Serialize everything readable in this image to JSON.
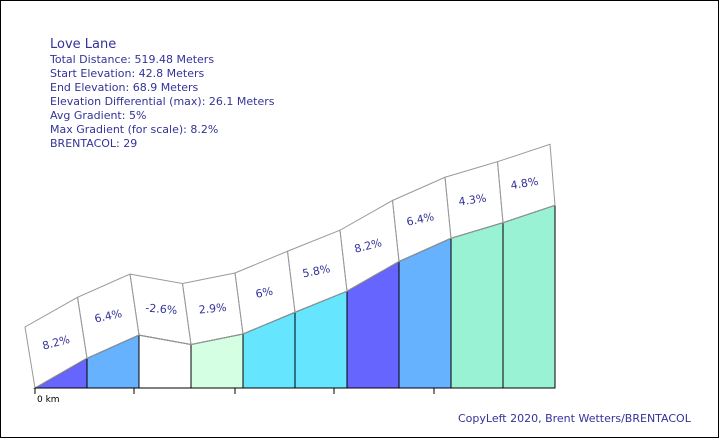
{
  "header": {
    "title": "Love Lane",
    "lines": [
      "Total Distance: 519.48 Meters",
      "Start Elevation: 42.8 Meters",
      "End Elevation: 68.9 Meters",
      "Elevation Differential (max): 26.1 Meters",
      "Avg Gradient: 5%",
      "Max Gradient (for scale): 8.2%",
      "BRENTACOL: 29"
    ]
  },
  "credit": "CopyLeft 2020, Brent Wetters/BRENTACOL",
  "chart_data": {
    "type": "area",
    "title": "Love Lane",
    "x_unit": "km",
    "x_tick_labels": [
      "0 km"
    ],
    "total_distance_m": 519.48,
    "start_elevation_m": 42.8,
    "end_elevation_m": 68.9,
    "segments": [
      {
        "grade": "8.2%",
        "value": 8.2,
        "color": "#6666ff"
      },
      {
        "grade": "6.4%",
        "value": 6.4,
        "color": "#66b2ff"
      },
      {
        "grade": "-2.6%",
        "value": -2.6,
        "color": "#ffffff"
      },
      {
        "grade": "2.9%",
        "value": 2.9,
        "color": "#d4ffe3"
      },
      {
        "grade": "6%",
        "value": 6.0,
        "color": "#66e5ff"
      },
      {
        "grade": "5.8%",
        "value": 5.8,
        "color": "#66e5ff"
      },
      {
        "grade": "8.2%",
        "value": 8.2,
        "color": "#6666ff"
      },
      {
        "grade": "6.4%",
        "value": 6.4,
        "color": "#66b2ff"
      },
      {
        "grade": "4.3%",
        "value": 4.3,
        "color": "#99f2d4"
      },
      {
        "grade": "4.8%",
        "value": 4.8,
        "color": "#99f2d4"
      }
    ]
  }
}
